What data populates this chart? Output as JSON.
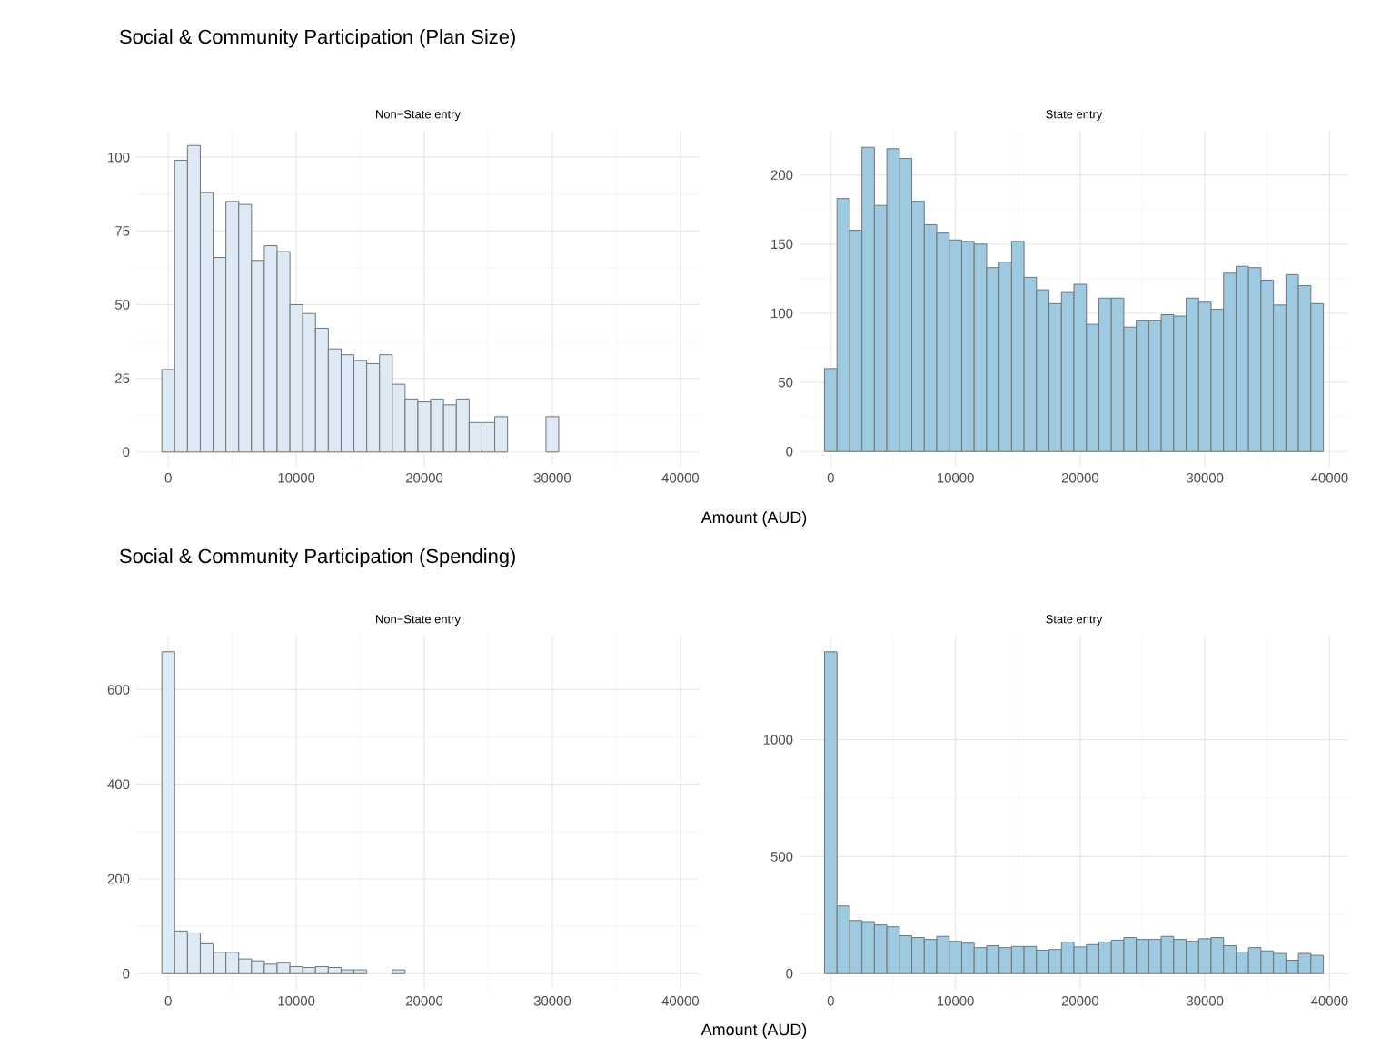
{
  "chart_data": [
    {
      "type": "histogram",
      "title": "Social & Community Participation (Plan Size)",
      "subtitle": "Non−State entry",
      "color": "#dde9f5",
      "grid": true,
      "bins": [
        -500,
        500,
        1500,
        2500,
        3500,
        4500,
        5500,
        6500,
        7500,
        8500,
        9500,
        10500,
        11500,
        12500,
        13500,
        14500,
        15500,
        16500,
        17500,
        18500,
        19500,
        20500,
        21500,
        22500,
        23500,
        24500,
        25500,
        26500,
        27500,
        28500,
        29500,
        30500,
        31500,
        32500,
        33500,
        34500,
        35500,
        36500,
        37500,
        38500,
        39500
      ],
      "values": [
        28,
        99,
        104,
        88,
        66,
        85,
        84,
        65,
        70,
        68,
        50,
        47,
        42,
        35,
        33,
        31,
        30,
        33,
        23,
        18,
        17,
        18,
        16,
        18,
        10,
        10,
        12,
        0,
        0,
        0,
        12,
        0,
        0,
        0,
        0,
        0,
        0,
        0,
        0,
        0
      ],
      "xlim": [
        -2500,
        41500
      ],
      "ylim": [
        -5,
        109
      ],
      "xticks": [
        0,
        10000,
        20000,
        30000,
        40000
      ],
      "yticks": [
        0,
        25,
        50,
        75,
        100
      ]
    },
    {
      "type": "histogram",
      "subtitle": "State entry",
      "xlabel": "Amount (AUD)",
      "color": "#9ecae1",
      "grid": true,
      "bins": [
        -500,
        500,
        1500,
        2500,
        3500,
        4500,
        5500,
        6500,
        7500,
        8500,
        9500,
        10500,
        11500,
        12500,
        13500,
        14500,
        15500,
        16500,
        17500,
        18500,
        19500,
        20500,
        21500,
        22500,
        23500,
        24500,
        25500,
        26500,
        27500,
        28500,
        29500,
        30500,
        31500,
        32500,
        33500,
        34500,
        35500,
        36500,
        37500,
        38500,
        39500
      ],
      "values": [
        60,
        183,
        160,
        220,
        178,
        219,
        212,
        181,
        164,
        158,
        153,
        152,
        150,
        133,
        137,
        152,
        126,
        117,
        107,
        115,
        121,
        92,
        111,
        111,
        90,
        95,
        95,
        99,
        98,
        111,
        108,
        103,
        129,
        134,
        133,
        124,
        106,
        128,
        120,
        107
      ],
      "xlim": [
        -2500,
        41500
      ],
      "ylim": [
        -11,
        232
      ],
      "xticks": [
        0,
        10000,
        20000,
        30000,
        40000
      ],
      "yticks": [
        0,
        50,
        100,
        150,
        200
      ]
    },
    {
      "type": "histogram",
      "title": "Social & Community Participation (Spending)",
      "subtitle": "Non−State entry",
      "color": "#dde9f5",
      "grid": true,
      "bins": [
        -500,
        500,
        1500,
        2500,
        3500,
        4500,
        5500,
        6500,
        7500,
        8500,
        9500,
        10500,
        11500,
        12500,
        13500,
        14500,
        15500,
        16500,
        17500,
        18500,
        19500,
        20500,
        21500,
        22500,
        23500,
        24500,
        25500,
        26500,
        27500,
        28500,
        29500,
        30500,
        31500,
        32500,
        33500,
        34500,
        35500,
        36500,
        37500,
        38500,
        39500
      ],
      "values": [
        680,
        90,
        86,
        63,
        45,
        45,
        31,
        27,
        20,
        23,
        15,
        13,
        15,
        13,
        8,
        8,
        0,
        0,
        8,
        0,
        0,
        0,
        0,
        0,
        0,
        0,
        0,
        0,
        0,
        0,
        0,
        0,
        0,
        0,
        0,
        0,
        0,
        0,
        0,
        0
      ],
      "xlim": [
        -2500,
        41500
      ],
      "ylim": [
        -34,
        714
      ],
      "xticks": [
        0,
        10000,
        20000,
        30000,
        40000
      ],
      "yticks": [
        0,
        200,
        400,
        600
      ]
    },
    {
      "type": "histogram",
      "subtitle": "State entry",
      "xlabel": "Amount (AUD)",
      "color": "#9ecae1",
      "grid": true,
      "bins": [
        -500,
        500,
        1500,
        2500,
        3500,
        4500,
        5500,
        6500,
        7500,
        8500,
        9500,
        10500,
        11500,
        12500,
        13500,
        14500,
        15500,
        16500,
        17500,
        18500,
        19500,
        20500,
        21500,
        22500,
        23500,
        24500,
        25500,
        26500,
        27500,
        28500,
        29500,
        30500,
        31500,
        32500,
        33500,
        34500,
        35500,
        36500,
        37500,
        38500,
        39500
      ],
      "values": [
        1376,
        289,
        227,
        222,
        208,
        200,
        162,
        154,
        146,
        159,
        138,
        130,
        111,
        119,
        111,
        116,
        116,
        100,
        103,
        135,
        114,
        124,
        135,
        143,
        154,
        146,
        146,
        159,
        146,
        138,
        149,
        154,
        119,
        92,
        111,
        97,
        86,
        57,
        86,
        78
      ],
      "xlim": [
        -2500,
        41500
      ],
      "ylim": [
        -69,
        1445
      ],
      "xticks": [
        0,
        10000,
        20000,
        30000,
        40000
      ],
      "yticks": [
        0,
        500,
        1000
      ]
    }
  ]
}
